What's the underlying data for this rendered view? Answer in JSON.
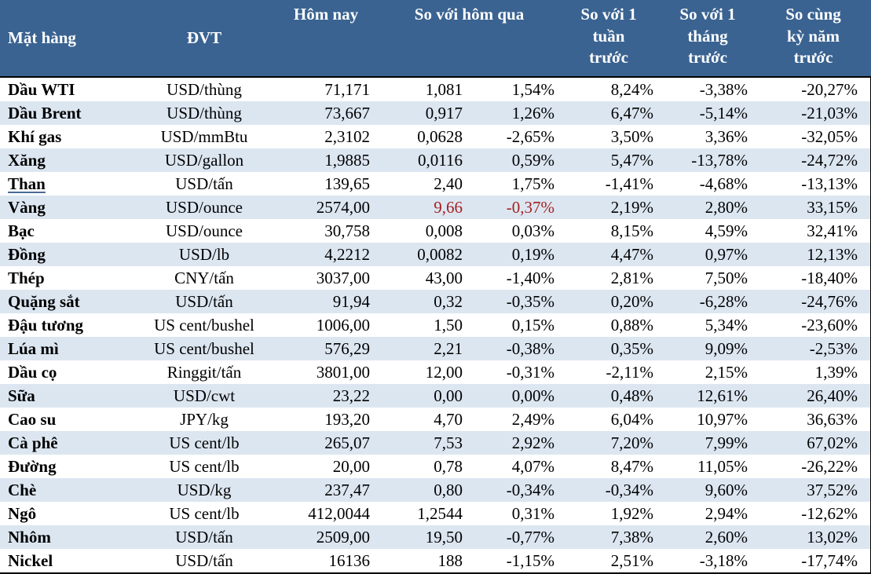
{
  "colors": {
    "header_bg": "#3A6391",
    "header_text": "#FFFFFF",
    "stripe_row_bg": "#DCE6F1",
    "body_text": "#000000",
    "highlight_red": "#A32020",
    "border": "#000000"
  },
  "table": {
    "headers": {
      "item": "Mặt hàng",
      "unit": "ĐVT",
      "today": "Hôm nay",
      "vs_yesterday": "So với hôm qua",
      "vs_week": "So với 1\ntuần\ntrước",
      "vs_month": "So với 1\ntháng\ntrước",
      "vs_year": "So cùng\nkỳ năm\ntrước"
    },
    "underline_row_indexes": [
      4
    ],
    "red_change_row_indexes": [
      5
    ]
  },
  "chart_data": {
    "type": "table",
    "columns": [
      "Mặt hàng",
      "ĐVT",
      "Hôm nay",
      "So với hôm qua (+/-)",
      "So với hôm qua (%)",
      "So với 1 tuần trước",
      "So với 1 tháng trước",
      "So cùng kỳ năm trước"
    ],
    "rows": [
      [
        "Dầu WTI",
        "USD/thùng",
        "71,171",
        "1,081",
        "1,54%",
        "8,24%",
        "-3,38%",
        "-20,27%"
      ],
      [
        "Dầu Brent",
        "USD/thùng",
        "73,667",
        "0,917",
        "1,26%",
        "6,47%",
        "-5,14%",
        "-21,03%"
      ],
      [
        "Khí gas",
        "USD/mmBtu",
        "2,3102",
        "0,0628",
        "-2,65%",
        "3,50%",
        "3,36%",
        "-32,05%"
      ],
      [
        "Xăng",
        "USD/gallon",
        "1,9885",
        "0,0116",
        "0,59%",
        "5,47%",
        "-13,78%",
        "-24,72%"
      ],
      [
        "Than",
        "USD/tấn",
        "139,65",
        "2,40",
        "1,75%",
        "-1,41%",
        "-4,68%",
        "-13,13%"
      ],
      [
        "Vàng",
        "USD/ounce",
        "2574,00",
        "9,66",
        "-0,37%",
        "2,19%",
        "2,80%",
        "33,15%"
      ],
      [
        "Bạc",
        "USD/ounce",
        "30,758",
        "0,008",
        "0,03%",
        "8,15%",
        "4,59%",
        "32,41%"
      ],
      [
        "Đồng",
        "USD/lb",
        "4,2212",
        "0,0082",
        "0,19%",
        "4,47%",
        "0,97%",
        "12,13%"
      ],
      [
        "Thép",
        "CNY/tấn",
        "3037,00",
        "43,00",
        "-1,40%",
        "2,81%",
        "7,50%",
        "-18,40%"
      ],
      [
        "Quặng sắt",
        "USD/tấn",
        "91,94",
        "0,32",
        "-0,35%",
        "0,20%",
        "-6,28%",
        "-24,76%"
      ],
      [
        "Đậu tương",
        "US cent/bushel",
        "1006,00",
        "1,50",
        "0,15%",
        "0,88%",
        "5,34%",
        "-23,60%"
      ],
      [
        "Lúa mì",
        "US cent/bushel",
        "576,29",
        "2,21",
        "-0,38%",
        "0,35%",
        "9,09%",
        "-2,53%"
      ],
      [
        "Dầu cọ",
        "Ringgit/tấn",
        "3801,00",
        "12,00",
        "-0,31%",
        "-2,11%",
        "2,15%",
        "1,39%"
      ],
      [
        "Sữa",
        "USD/cwt",
        "23,22",
        "0,00",
        "0,00%",
        "0,48%",
        "12,61%",
        "26,40%"
      ],
      [
        "Cao su",
        "JPY/kg",
        "193,20",
        "4,70",
        "2,49%",
        "6,04%",
        "10,97%",
        "36,63%"
      ],
      [
        "Cà phê",
        "US cent/lb",
        "265,07",
        "7,53",
        "2,92%",
        "7,20%",
        "7,99%",
        "67,02%"
      ],
      [
        "Đường",
        "US cent/lb",
        "20,00",
        "0,78",
        "4,07%",
        "8,47%",
        "11,05%",
        "-26,22%"
      ],
      [
        "Chè",
        "USD/kg",
        "237,47",
        "0,80",
        "-0,34%",
        "-0,34%",
        "9,60%",
        "37,52%"
      ],
      [
        "Ngô",
        "US cent/lb",
        "412,0044",
        "1,2544",
        "0,31%",
        "1,92%",
        "2,94%",
        "-12,62%"
      ],
      [
        "Nhôm",
        "USD/tấn",
        "2509,00",
        "19,50",
        "-0,77%",
        "7,38%",
        "2,60%",
        "13,02%"
      ],
      [
        "Nickel",
        "USD/tấn",
        "16136",
        "188",
        "-1,15%",
        "2,51%",
        "-3,18%",
        "-17,74%"
      ]
    ]
  }
}
